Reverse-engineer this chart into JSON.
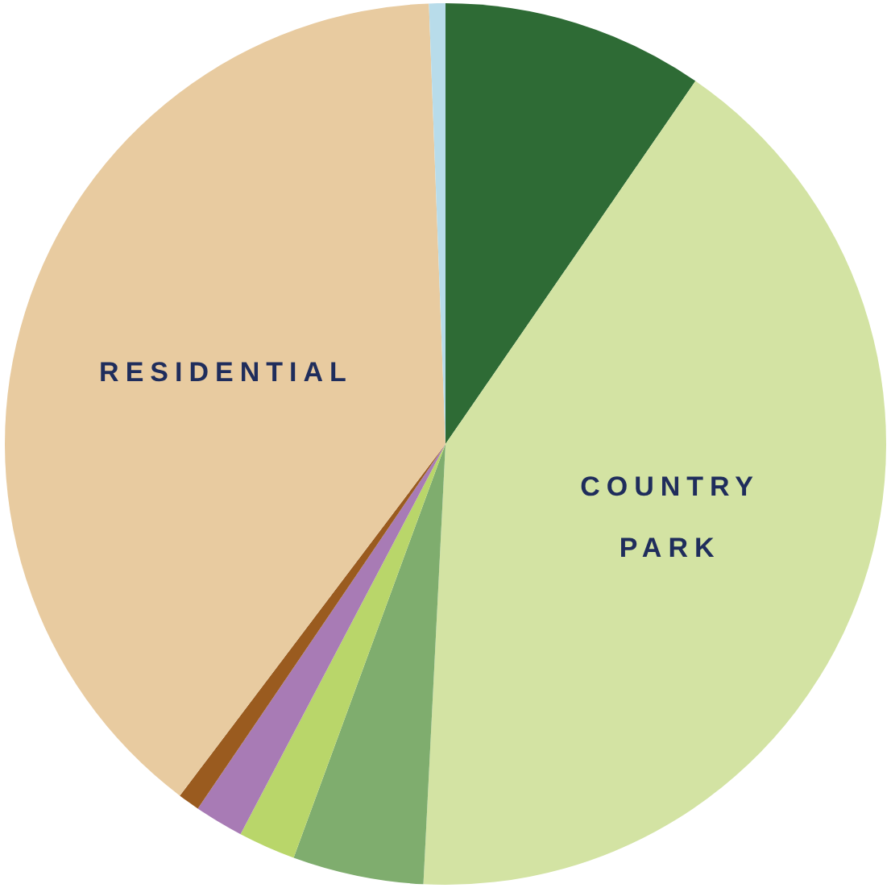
{
  "chart_data": {
    "type": "pie",
    "categories": [
      null,
      "COUNTRY PARK",
      null,
      null,
      null,
      null,
      "RESIDENTIAL",
      null
    ],
    "values": [
      9.6,
      41.2,
      4.8,
      2.1,
      1.8,
      0.8,
      39.1,
      0.6
    ],
    "colors": [
      "#2e6b35",
      "#d3e3a3",
      "#7fad6e",
      "#b9d66a",
      "#a87bb5",
      "#9a5b1f",
      "#e8cba0",
      "#b8dcea"
    ],
    "legend": false
  }
}
